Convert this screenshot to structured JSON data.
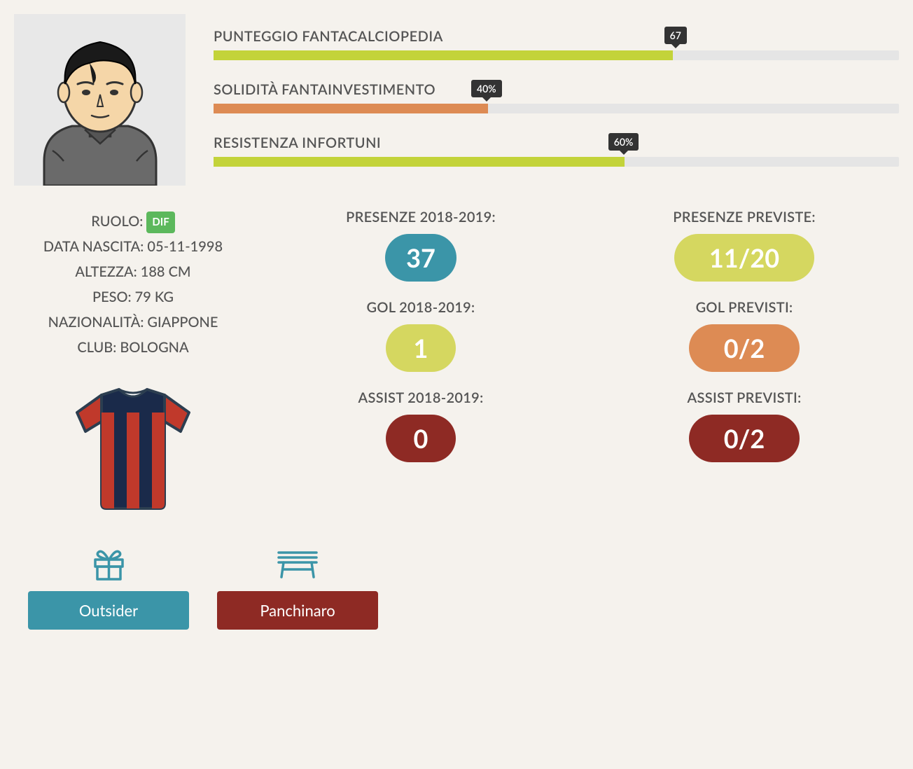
{
  "colors": {
    "green_bar": "#c3d33a",
    "orange_bar": "#dd8b54",
    "teal": "#3b95a8",
    "yellow_green": "#d5d760",
    "orange_pill": "#dd8b54",
    "dark_red": "#8e2a24",
    "role_green": "#5cb85c",
    "gift_teal": "#3b95a8",
    "bench_teal": "#3b95a8"
  },
  "bars": [
    {
      "label": "PUNTEGGIO FANTACALCIOPEDIA",
      "value": 67,
      "text": "67",
      "color": "#c3d33a"
    },
    {
      "label": "SOLIDITÀ FANTAINVESTIMENTO",
      "value": 40,
      "text": "40%",
      "color": "#dd8b54"
    },
    {
      "label": "RESISTENZA INFORTUNI",
      "value": 60,
      "text": "60%",
      "color": "#c3d33a"
    }
  ],
  "info": {
    "role_label": "RUOLO:",
    "role_value": "DIF",
    "birth": "DATA NASCITA: 05-11-1998",
    "height": "ALTEZZA: 188 CM",
    "weight": "PESO: 79 KG",
    "nationality": "NAZIONALITÀ: GIAPPONE",
    "club": "CLUB: BOLOGNA"
  },
  "stats_current": [
    {
      "label": "PRESENZE 2018-2019:",
      "value": "37",
      "color": "#3b95a8"
    },
    {
      "label": "GOL 2018-2019:",
      "value": "1",
      "color": "#d5d760"
    },
    {
      "label": "ASSIST 2018-2019:",
      "value": "0",
      "color": "#8e2a24"
    }
  ],
  "stats_predicted": [
    {
      "label": "PRESENZE PREVISTE:",
      "value": "11/20",
      "color": "#d5d760"
    },
    {
      "label": "GOL PREVISTI:",
      "value": "0/2",
      "color": "#dd8b54"
    },
    {
      "label": "ASSIST PREVISTI:",
      "value": "0/2",
      "color": "#8e2a24"
    }
  ],
  "tags": [
    {
      "label": "Outsider",
      "color": "#3b95a8",
      "icon": "gift"
    },
    {
      "label": "Panchinaro",
      "color": "#8e2a24",
      "icon": "bench"
    }
  ],
  "jersey": {
    "stripe_navy": "#1a2a4a",
    "stripe_red": "#c0392b",
    "outline": "#2c3e50"
  }
}
